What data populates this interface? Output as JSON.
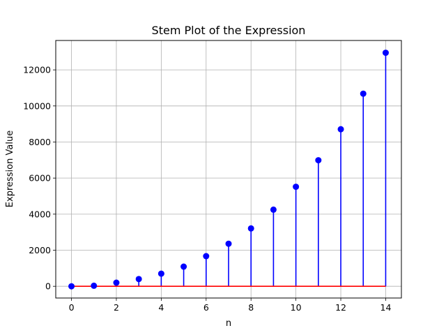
{
  "chart_data": {
    "type": "stem",
    "title": "Stem Plot of the Expression",
    "xlabel": "n",
    "ylabel": "Expression Value",
    "xlim": [
      -0.7,
      14.7
    ],
    "ylim": [
      -650,
      13630
    ],
    "xticks": [
      0,
      2,
      4,
      6,
      8,
      10,
      12,
      14
    ],
    "yticks": [
      0,
      2000,
      4000,
      6000,
      8000,
      10000,
      12000
    ],
    "grid": true,
    "baseline": 0,
    "colors": {
      "stem": "#0000ff",
      "marker": "#0000ff",
      "baseline": "#ff0000",
      "grid": "#b0b0b0"
    },
    "series": [
      {
        "x": [
          0,
          1,
          2,
          3,
          4,
          5,
          6,
          7,
          8,
          9,
          10,
          11,
          12,
          13,
          14
        ],
        "values": [
          0,
          30,
          200,
          400,
          700,
          1090,
          1670,
          2360,
          3210,
          4250,
          5520,
          6990,
          8710,
          10680,
          12950
        ]
      }
    ]
  }
}
